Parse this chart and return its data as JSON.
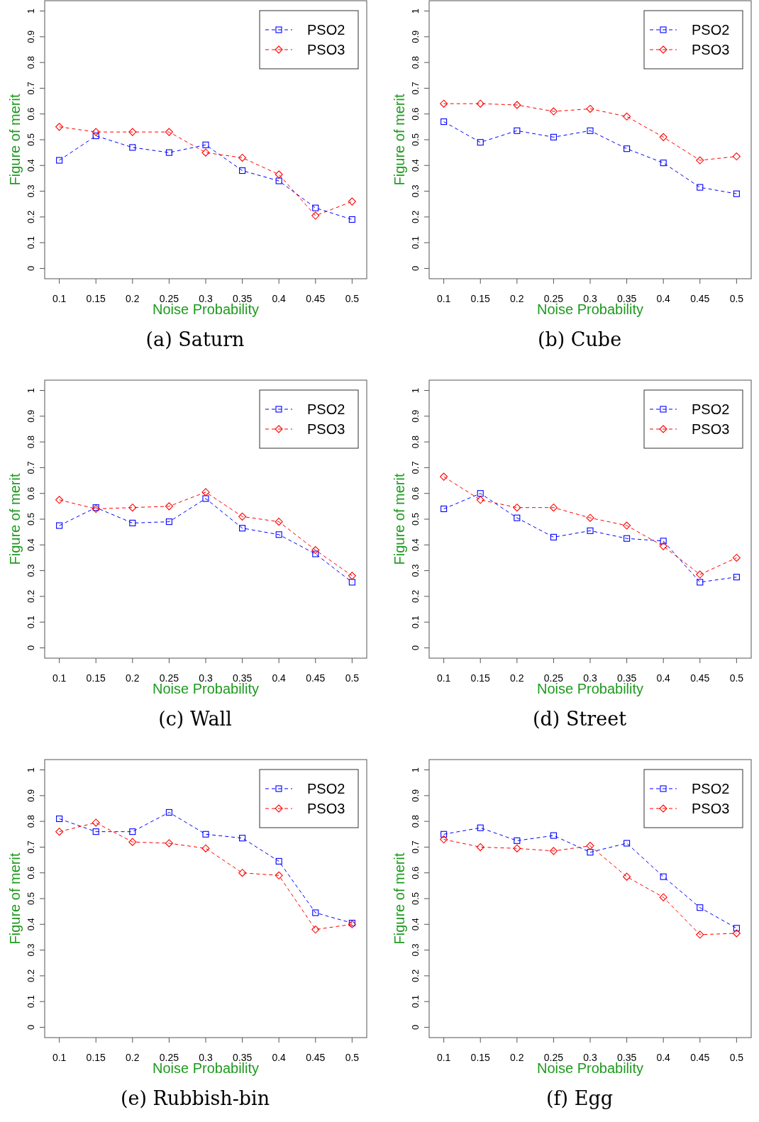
{
  "chart_data": [
    {
      "type": "line",
      "title": "(a) Saturn",
      "xlabel": "Noise Probability",
      "ylabel": "Figure of merit",
      "x": [
        0.1,
        0.15,
        0.2,
        0.25,
        0.3,
        0.35,
        0.4,
        0.45,
        0.5
      ],
      "xlim": [
        0.08,
        0.52
      ],
      "xticks": [
        0.1,
        0.15,
        0.2,
        0.25,
        0.3,
        0.35,
        0.4,
        0.45,
        0.5
      ],
      "ylim": [
        -0.04,
        1.04
      ],
      "yticks": [
        0,
        0.1,
        0.2,
        0.3,
        0.4,
        0.5,
        0.6,
        0.7,
        0.8,
        0.9,
        1
      ],
      "legend": "top right",
      "line_style": "dashed",
      "series": [
        {
          "name": "PSO2",
          "color": "#0000ff",
          "marker": "square",
          "values": [
            0.42,
            0.515,
            0.47,
            0.45,
            0.48,
            0.38,
            0.34,
            0.235,
            0.19
          ]
        },
        {
          "name": "PSO3",
          "color": "#ff0000",
          "marker": "diamond",
          "values": [
            0.55,
            0.53,
            0.53,
            0.53,
            0.45,
            0.43,
            0.365,
            0.205,
            0.26
          ]
        }
      ]
    },
    {
      "type": "line",
      "title": "(b) Cube",
      "xlabel": "Noise Probability",
      "ylabel": "Figure of merit",
      "x": [
        0.1,
        0.15,
        0.2,
        0.25,
        0.3,
        0.35,
        0.4,
        0.45,
        0.5
      ],
      "xlim": [
        0.08,
        0.52
      ],
      "xticks": [
        0.1,
        0.15,
        0.2,
        0.25,
        0.3,
        0.35,
        0.4,
        0.45,
        0.5
      ],
      "ylim": [
        -0.04,
        1.04
      ],
      "yticks": [
        0,
        0.1,
        0.2,
        0.3,
        0.4,
        0.5,
        0.6,
        0.7,
        0.8,
        0.9,
        1
      ],
      "legend": "top right",
      "line_style": "dashed",
      "series": [
        {
          "name": "PSO2",
          "color": "#0000ff",
          "marker": "square",
          "values": [
            0.57,
            0.49,
            0.535,
            0.51,
            0.535,
            0.465,
            0.41,
            0.315,
            0.29
          ]
        },
        {
          "name": "PSO3",
          "color": "#ff0000",
          "marker": "diamond",
          "values": [
            0.64,
            0.64,
            0.635,
            0.61,
            0.62,
            0.59,
            0.51,
            0.42,
            0.435
          ]
        }
      ]
    },
    {
      "type": "line",
      "title": "(c) Wall",
      "xlabel": "Noise Probability",
      "ylabel": "Figure of merit",
      "x": [
        0.1,
        0.15,
        0.2,
        0.25,
        0.3,
        0.35,
        0.4,
        0.45,
        0.5
      ],
      "xlim": [
        0.08,
        0.52
      ],
      "xticks": [
        0.1,
        0.15,
        0.2,
        0.25,
        0.3,
        0.35,
        0.4,
        0.45,
        0.5
      ],
      "ylim": [
        -0.04,
        1.04
      ],
      "yticks": [
        0,
        0.1,
        0.2,
        0.3,
        0.4,
        0.5,
        0.6,
        0.7,
        0.8,
        0.9,
        1
      ],
      "legend": "top right",
      "line_style": "dashed",
      "series": [
        {
          "name": "PSO2",
          "color": "#0000ff",
          "marker": "square",
          "values": [
            0.475,
            0.545,
            0.485,
            0.49,
            0.58,
            0.465,
            0.44,
            0.365,
            0.255
          ]
        },
        {
          "name": "PSO3",
          "color": "#ff0000",
          "marker": "diamond",
          "values": [
            0.575,
            0.54,
            0.545,
            0.55,
            0.605,
            0.51,
            0.49,
            0.38,
            0.28
          ]
        }
      ]
    },
    {
      "type": "line",
      "title": "(d) Street",
      "xlabel": "Noise Probability",
      "ylabel": "Figure of merit",
      "x": [
        0.1,
        0.15,
        0.2,
        0.25,
        0.3,
        0.35,
        0.4,
        0.45,
        0.5
      ],
      "xlim": [
        0.08,
        0.52
      ],
      "xticks": [
        0.1,
        0.15,
        0.2,
        0.25,
        0.3,
        0.35,
        0.4,
        0.45,
        0.5
      ],
      "ylim": [
        -0.04,
        1.04
      ],
      "yticks": [
        0,
        0.1,
        0.2,
        0.3,
        0.4,
        0.5,
        0.6,
        0.7,
        0.8,
        0.9,
        1
      ],
      "legend": "top right",
      "line_style": "dashed",
      "series": [
        {
          "name": "PSO2",
          "color": "#0000ff",
          "marker": "square",
          "values": [
            0.54,
            0.6,
            0.505,
            0.43,
            0.455,
            0.425,
            0.415,
            0.255,
            0.275
          ]
        },
        {
          "name": "PSO3",
          "color": "#ff0000",
          "marker": "diamond",
          "values": [
            0.665,
            0.575,
            0.545,
            0.545,
            0.505,
            0.475,
            0.395,
            0.285,
            0.35
          ]
        }
      ]
    },
    {
      "type": "line",
      "title": "(e) Rubbish-bin",
      "xlabel": "Noise Probability",
      "ylabel": "Figure of merit",
      "x": [
        0.1,
        0.15,
        0.2,
        0.25,
        0.3,
        0.35,
        0.4,
        0.45,
        0.5
      ],
      "xlim": [
        0.08,
        0.52
      ],
      "xticks": [
        0.1,
        0.15,
        0.2,
        0.25,
        0.3,
        0.35,
        0.4,
        0.45,
        0.5
      ],
      "ylim": [
        -0.04,
        1.04
      ],
      "yticks": [
        0,
        0.1,
        0.2,
        0.3,
        0.4,
        0.5,
        0.6,
        0.7,
        0.8,
        0.9,
        1
      ],
      "legend": "top right",
      "line_style": "dashed",
      "series": [
        {
          "name": "PSO2",
          "color": "#0000ff",
          "marker": "square",
          "values": [
            0.81,
            0.76,
            0.76,
            0.835,
            0.75,
            0.735,
            0.645,
            0.445,
            0.405
          ]
        },
        {
          "name": "PSO3",
          "color": "#ff0000",
          "marker": "diamond",
          "values": [
            0.76,
            0.795,
            0.72,
            0.715,
            0.695,
            0.6,
            0.59,
            0.38,
            0.4
          ]
        }
      ]
    },
    {
      "type": "line",
      "title": "(f) Egg",
      "xlabel": "Noise Probability",
      "ylabel": "Figure of merit",
      "x": [
        0.1,
        0.15,
        0.2,
        0.25,
        0.3,
        0.35,
        0.4,
        0.45,
        0.5
      ],
      "xlim": [
        0.08,
        0.52
      ],
      "xticks": [
        0.1,
        0.15,
        0.2,
        0.25,
        0.3,
        0.35,
        0.4,
        0.45,
        0.5
      ],
      "ylim": [
        -0.04,
        1.04
      ],
      "yticks": [
        0,
        0.1,
        0.2,
        0.3,
        0.4,
        0.5,
        0.6,
        0.7,
        0.8,
        0.9,
        1
      ],
      "legend": "top right",
      "line_style": "dashed",
      "series": [
        {
          "name": "PSO2",
          "color": "#0000ff",
          "marker": "square",
          "values": [
            0.75,
            0.775,
            0.725,
            0.745,
            0.68,
            0.715,
            0.585,
            0.465,
            0.385
          ]
        },
        {
          "name": "PSO3",
          "color": "#ff0000",
          "marker": "diamond",
          "values": [
            0.73,
            0.7,
            0.695,
            0.685,
            0.705,
            0.585,
            0.505,
            0.36,
            0.365
          ]
        }
      ]
    }
  ]
}
